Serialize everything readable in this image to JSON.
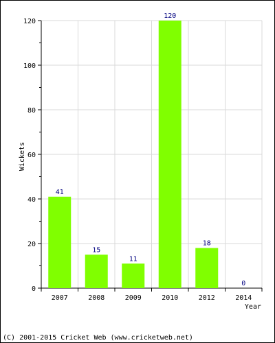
{
  "chart_data": {
    "type": "bar",
    "title": "",
    "ylabel": "Wickets",
    "xlabel": "Year",
    "categories": [
      "2007",
      "2008",
      "2009",
      "2010",
      "2012",
      "2014"
    ],
    "values": [
      41,
      15,
      11,
      120,
      18,
      0
    ],
    "data_labels": [
      "41",
      "15",
      "11",
      "120",
      "18",
      "0"
    ],
    "ylim": [
      0,
      120
    ],
    "yticks": [
      0,
      20,
      40,
      60,
      80,
      100,
      120
    ],
    "grid": true,
    "bar_color": "#80ff00",
    "label_color": "#000080",
    "grid_color": "#d9d9d9"
  },
  "footer": {
    "copyright": "(C) 2001-2015 Cricket Web (www.cricketweb.net)"
  }
}
